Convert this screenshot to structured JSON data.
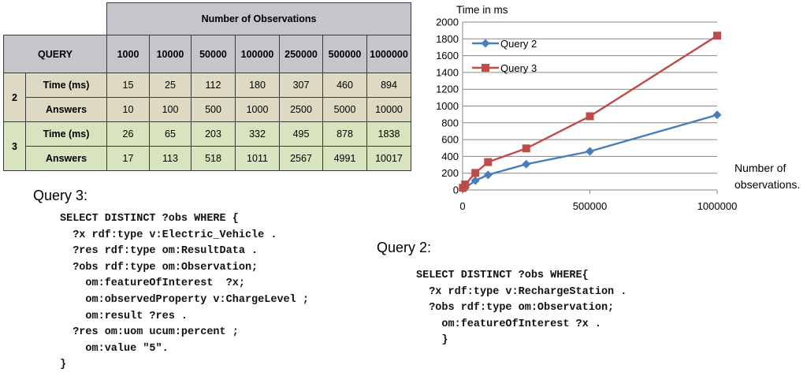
{
  "table": {
    "header_title": "Number of Observations",
    "query_label": "QUERY",
    "columns": [
      "1000",
      "10000",
      "50000",
      "100000",
      "250000",
      "500000",
      "1000000"
    ],
    "groups": [
      {
        "id": "2",
        "rows": [
          {
            "label": "Time (ms)",
            "values": [
              "15",
              "25",
              "112",
              "180",
              "307",
              "460",
              "894"
            ]
          },
          {
            "label": "Answers",
            "values": [
              "10",
              "100",
              "500",
              "1000",
              "2500",
              "5000",
              "10000"
            ]
          }
        ]
      },
      {
        "id": "3",
        "rows": [
          {
            "label": "Time (ms)",
            "values": [
              "26",
              "65",
              "203",
              "332",
              "495",
              "878",
              "1838"
            ]
          },
          {
            "label": "Answers",
            "values": [
              "17",
              "113",
              "518",
              "1011",
              "2567",
              "4991",
              "10017"
            ]
          }
        ]
      }
    ]
  },
  "chart_data": {
    "type": "line",
    "ylabel": "Time in ms",
    "xlabel_lines": [
      "Number of",
      "observations."
    ],
    "x": [
      1000,
      10000,
      50000,
      100000,
      250000,
      500000,
      1000000
    ],
    "xlim": [
      0,
      1000000
    ],
    "ylim": [
      0,
      2000
    ],
    "x_ticks": [
      0,
      500000,
      1000000
    ],
    "y_ticks": [
      0,
      200,
      400,
      600,
      800,
      1000,
      1200,
      1400,
      1600,
      1800,
      2000
    ],
    "grid": true,
    "legend": "top-left",
    "series": [
      {
        "name": "Query 2",
        "values": [
          15,
          25,
          112,
          180,
          307,
          460,
          894
        ],
        "color": "#4a7ebb",
        "marker": "diamond"
      },
      {
        "name": "Query 3",
        "values": [
          26,
          65,
          203,
          332,
          495,
          878,
          1838
        ],
        "color": "#be4b48",
        "marker": "square"
      }
    ]
  },
  "query3": {
    "title": "Query 3:",
    "code": "SELECT DISTINCT ?obs WHERE {\n  ?x rdf:type v:Electric_Vehicle .\n  ?res rdf:type om:ResultData .\n  ?obs rdf:type om:Observation;\n    om:featureOfInterest  ?x;\n    om:observedProperty v:ChargeLevel ;\n    om:result ?res .\n  ?res om:uom ucum:percent ;\n    om:value \"5\".\n}"
  },
  "query2": {
    "title": "Query 2:",
    "code": "SELECT DISTINCT ?obs WHERE{\n  ?x rdf:type v:RechargeStation .\n  ?obs rdf:type om:Observation;\n    om:featureOfInterest ?x .\n    }"
  }
}
